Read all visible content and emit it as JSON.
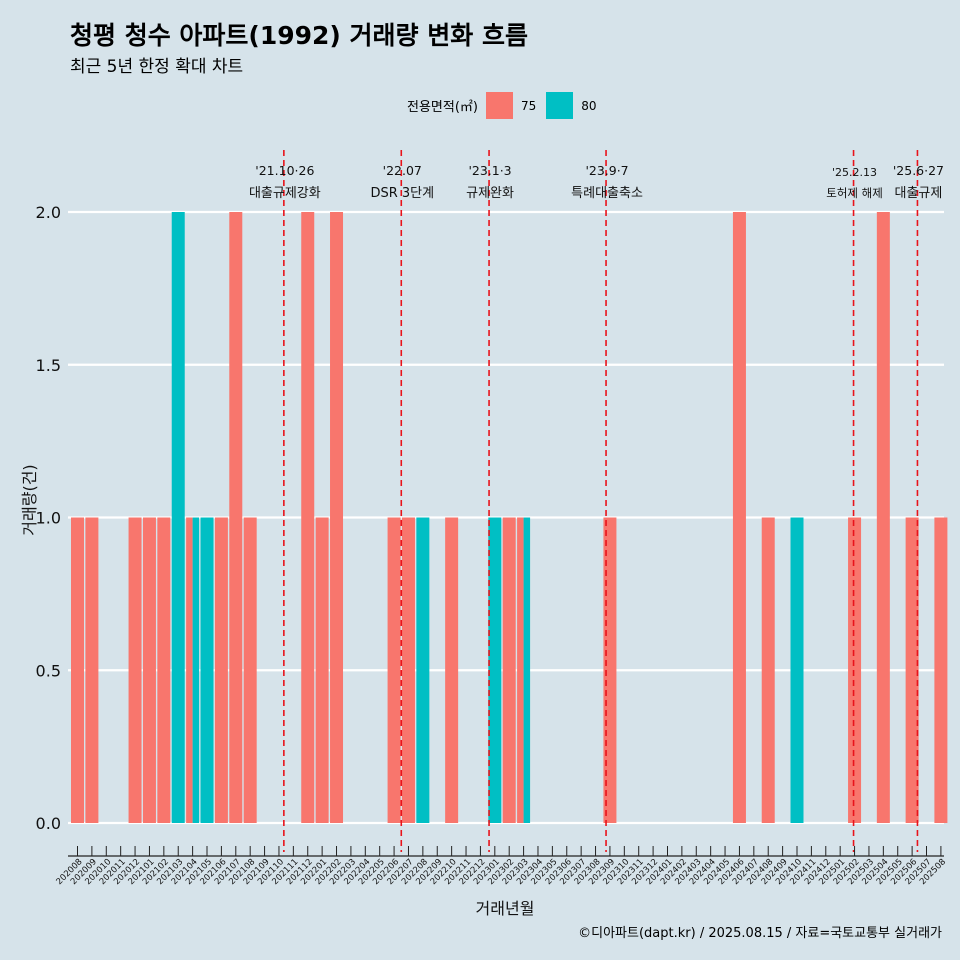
{
  "chart_data": {
    "type": "bar",
    "title": "청평 청수 아파트(1992) 거래량 변화 흐름",
    "subtitle": "최근 5년 한정 확대 차트",
    "xlabel": "거래년월",
    "ylabel": "거래량(건)",
    "ylim": [
      0,
      2
    ],
    "yticks": [
      "0.0",
      "0.5",
      "1.0",
      "1.5",
      "2.0"
    ],
    "legend": {
      "title": "전용면적(㎡)",
      "position": "top",
      "items": [
        {
          "label": "75",
          "color": "#f8766d"
        },
        {
          "label": "80",
          "color": "#00bfc4"
        }
      ]
    },
    "categories": [
      "202008",
      "202009",
      "202010",
      "202011",
      "202012",
      "202101",
      "202102",
      "202103",
      "202104",
      "202105",
      "202106",
      "202107",
      "202108",
      "202109",
      "202110",
      "202111",
      "202112",
      "202201",
      "202202",
      "202203",
      "202204",
      "202205",
      "202206",
      "202207",
      "202208",
      "202209",
      "202210",
      "202211",
      "202212",
      "202301",
      "202302",
      "202303",
      "202304",
      "202305",
      "202306",
      "202307",
      "202308",
      "202309",
      "202310",
      "202311",
      "202312",
      "202401",
      "202402",
      "202403",
      "202404",
      "202405",
      "202406",
      "202407",
      "202408",
      "202409",
      "202410",
      "202411",
      "202412",
      "202501",
      "202502",
      "202503",
      "202504",
      "202505",
      "202506",
      "202507",
      "202508"
    ],
    "series": [
      {
        "name": "75",
        "color": "#f8766d",
        "values": [
          1,
          1,
          0,
          0,
          1,
          1,
          1,
          0,
          1,
          0,
          1,
          2,
          1,
          0,
          0,
          0,
          2,
          1,
          2,
          0,
          0,
          0,
          1,
          1,
          0,
          0,
          1,
          0,
          0,
          0,
          1,
          1,
          0,
          0,
          0,
          0,
          0,
          1,
          0,
          0,
          0,
          0,
          0,
          0,
          0,
          0,
          2,
          0,
          1,
          0,
          0,
          0,
          0,
          0,
          1,
          0,
          2,
          0,
          1,
          0,
          1
        ]
      },
      {
        "name": "80",
        "color": "#00bfc4",
        "values": [
          0,
          0,
          0,
          0,
          0,
          0,
          0,
          2,
          1,
          1,
          0,
          0,
          0,
          0,
          0,
          0,
          0,
          0,
          0,
          0,
          0,
          0,
          0,
          0,
          1,
          0,
          0,
          0,
          0,
          1,
          0,
          1,
          0,
          0,
          0,
          0,
          0,
          0,
          0,
          0,
          0,
          0,
          0,
          0,
          0,
          0,
          0,
          0,
          0,
          0,
          1,
          0,
          0,
          0,
          0,
          0,
          0,
          0,
          0,
          0,
          0
        ]
      }
    ],
    "events": [
      {
        "date": "202110",
        "offset": 0.84,
        "line1": "'21.10·26",
        "line2": "대출규제강화"
      },
      {
        "date": "202207",
        "offset": 0.0,
        "line1": "'22.07",
        "line2": "DSR 3단계"
      },
      {
        "date": "202301",
        "offset": 0.1,
        "line1": "'23.1·3",
        "line2": "규제완화"
      },
      {
        "date": "202309",
        "offset": 0.23,
        "line1": "'23.9·7",
        "line2": "특례대출축소"
      },
      {
        "date": "202502",
        "offset": 0.43,
        "line1": "'25.2.13",
        "line2": "토허제 해제"
      },
      {
        "date": "202506",
        "offset": 0.87,
        "line1": "'25.6·27",
        "line2": "대출규제"
      }
    ],
    "grid": true
  },
  "caption": "©디아파트(dapt.kr) / 2025.08.15 / 자료=국토교통부 실거래가"
}
